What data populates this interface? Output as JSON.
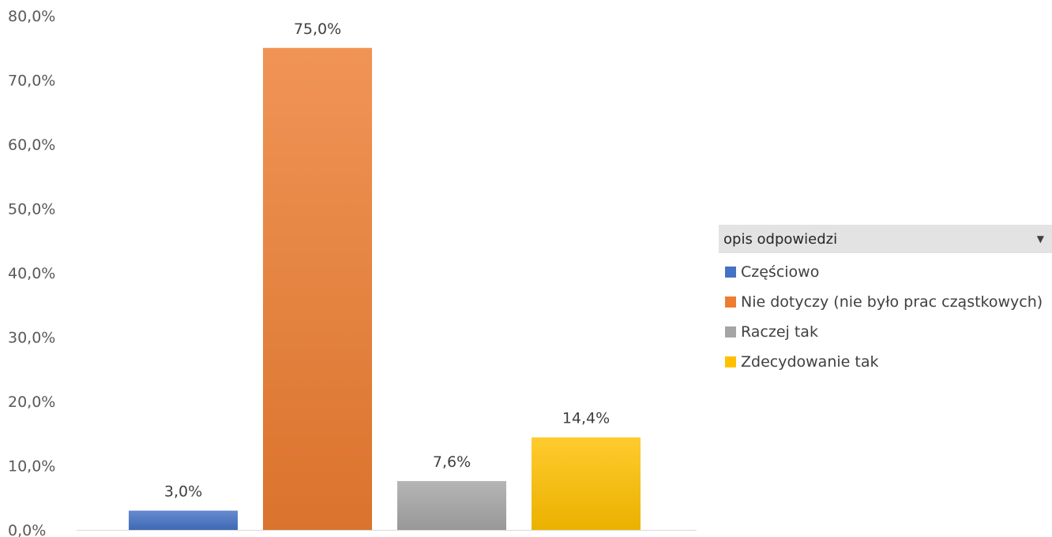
{
  "chart_data": {
    "type": "bar",
    "categories": [
      "Częściowo",
      "Nie dotyczy (nie było prac cząstkowych)",
      "Raczej tak",
      "Zdecydowanie tak"
    ],
    "values": [
      3.0,
      75.0,
      7.6,
      14.4
    ],
    "value_labels": [
      "3,0%",
      "75,0%",
      "7,6%",
      "14,4%"
    ],
    "colors": [
      "#4472c4",
      "#ed7d31",
      "#a5a5a5",
      "#ffc000"
    ],
    "ylim": [
      0,
      80
    ],
    "y_ticks": [
      {
        "value": 0,
        "label": "0,0%"
      },
      {
        "value": 10,
        "label": "10,0%"
      },
      {
        "value": 20,
        "label": "20,0%"
      },
      {
        "value": 30,
        "label": "30,0%"
      },
      {
        "value": 40,
        "label": "40,0%"
      },
      {
        "value": 50,
        "label": "50,0%"
      },
      {
        "value": 60,
        "label": "60,0%"
      },
      {
        "value": 70,
        "label": "70,0%"
      },
      {
        "value": 80,
        "label": "80,0%"
      }
    ],
    "grid": false,
    "legend_position": "right",
    "title": "",
    "xlabel": "",
    "ylabel": ""
  },
  "legend": {
    "header": "opis odpowiedzi",
    "items": [
      {
        "label": "Częściowo",
        "color": "#4472c4"
      },
      {
        "label": "Nie dotyczy (nie było prac cząstkowych)",
        "color": "#ed7d31"
      },
      {
        "label": "Raczej tak",
        "color": "#a5a5a5"
      },
      {
        "label": "Zdecydowanie tak",
        "color": "#ffc000"
      }
    ]
  }
}
